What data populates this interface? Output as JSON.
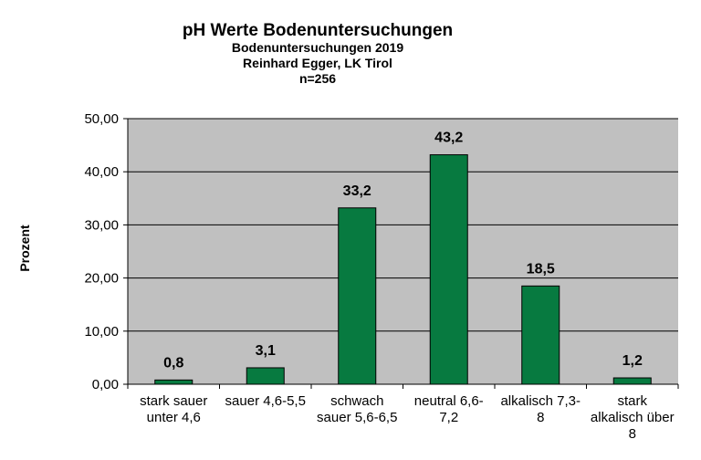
{
  "chart_data": {
    "type": "bar",
    "title": "pH Werte  Bodenuntersuchungen",
    "subtitle_lines": [
      "Bodenuntersuchungen 2019",
      "Reinhard Egger, LK Tirol",
      "n=256"
    ],
    "ylabel": "Prozent",
    "xlabel": "",
    "categories": [
      [
        "stark sauer",
        "unter 4,6"
      ],
      [
        "sauer 4,6-5,5"
      ],
      [
        "schwach",
        "sauer 5,6-6,5"
      ],
      [
        "neutral 6,6-",
        "7,2"
      ],
      [
        "alkalisch 7,3-",
        "8"
      ],
      [
        "stark",
        "alkalisch über",
        "8"
      ]
    ],
    "values": [
      0.8,
      3.1,
      33.2,
      43.2,
      18.5,
      1.2
    ],
    "data_labels": [
      "0,8",
      "3,1",
      "33,2",
      "43,2",
      "18,5",
      "1,2"
    ],
    "ylim": [
      0,
      50
    ],
    "yticks": [
      "0,00",
      "10,00",
      "20,00",
      "30,00",
      "40,00",
      "50,00"
    ],
    "grid": true,
    "legend": "none",
    "colors": {
      "bar": "#077a40",
      "plot_bg": "#c0c0c0",
      "grid": "#000000"
    }
  }
}
